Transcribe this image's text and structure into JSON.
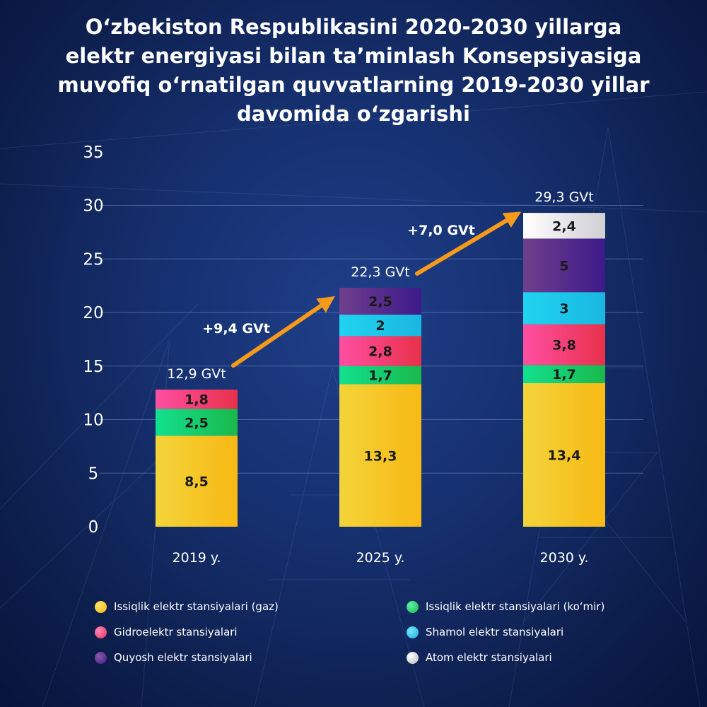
{
  "title_lines": [
    "O‘zbekiston Respublikasini 2020-2030 yillarga",
    "elektr energiyasi bilan ta’minlash Konsepsiyasiga",
    "muvofiq o‘rnatilgan quvvatlarning 2019-2030 yillar",
    "davomida o‘zgarishi"
  ],
  "chart_data": {
    "type": "bar",
    "stacked": true,
    "categories": [
      "2019 y.",
      "2025 y.",
      "2030 y."
    ],
    "ylim": [
      0,
      35
    ],
    "yticks": [
      0,
      5,
      10,
      15,
      20,
      25,
      30,
      35
    ],
    "grid": true,
    "series": [
      {
        "name": "Issiqlik elektr stansiyalari (gaz)",
        "values": [
          8.5,
          13.3,
          13.4
        ],
        "labels": [
          "8,5",
          "13,3",
          "13,4"
        ],
        "color": "#f7c61c"
      },
      {
        "name": "Issiqlik elektr stansiyalari (ko‘mir)",
        "values": [
          2.5,
          1.7,
          1.7
        ],
        "labels": [
          "2,5",
          "1,7",
          "1,7"
        ],
        "color": "#19cf6a"
      },
      {
        "name": "Gidroelektr stansiyalari",
        "values": [
          1.8,
          2.8,
          3.8
        ],
        "labels": [
          "1,8",
          "2,8",
          "3,8"
        ],
        "color": "#ef3f7d"
      },
      {
        "name": "Shamol elektr stansiyalari",
        "values": [
          0,
          2,
          3
        ],
        "labels": [
          "",
          "2",
          "3"
        ],
        "color": "#22c9ea"
      },
      {
        "name": "Quyosh elektr stansiyalari",
        "values": [
          0,
          2.5,
          5
        ],
        "labels": [
          "",
          "2,5",
          "5"
        ],
        "color": "#56308f"
      },
      {
        "name": "Atom elektr stansiyalari",
        "values": [
          0,
          0,
          2.4
        ],
        "labels": [
          "",
          "",
          "2,4"
        ],
        "color": "#f1f1f1"
      }
    ],
    "totals": [
      "12,9 GVt",
      "22,3 GVt",
      "29,3 GVt"
    ],
    "annotations": [
      {
        "text": "+9,4 GVt",
        "from": "2019 y.",
        "to": "2025 y."
      },
      {
        "text": "+7,0 GVt",
        "from": "2025 y.",
        "to": "2030 y."
      }
    ],
    "arrow_color": "#f59a1b",
    "legend": [
      "Issiqlik elektr stansiyalari (gaz)",
      "Issiqlik elektr stansiyalari (ko‘mir)",
      "Gidroelektr stansiyalari",
      "Shamol elektr stansiyalari",
      "Quyosh elektr stansiyalari",
      "Atom elektr stansiyalari"
    ]
  }
}
